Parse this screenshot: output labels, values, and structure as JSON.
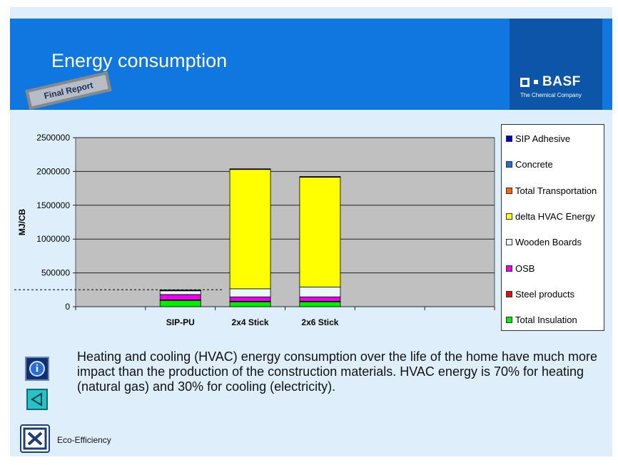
{
  "header": {
    "title": "Energy consumption",
    "stamp": "Final Report",
    "logo_name": "BASF",
    "logo_tagline": "The Chemical Company"
  },
  "chart_data": {
    "type": "bar",
    "stacked": true,
    "title": "",
    "xlabel": "",
    "ylabel": "MJ/CB",
    "ylim": [
      0,
      2500000
    ],
    "yticks": [
      "0",
      "500000",
      "1000000",
      "1500000",
      "2000000",
      "2500000"
    ],
    "categories": [
      "SIP-PU",
      "2x4 Stick",
      "2x6 Stick"
    ],
    "grid": true,
    "reference_line_value": 250000,
    "legend_position": "right",
    "series": [
      {
        "name": "Total Insulation",
        "color": "#00ee00",
        "values": [
          95000,
          75000,
          75000
        ]
      },
      {
        "name": "Steel products",
        "color": "#e01010",
        "values": [
          5000,
          5000,
          5000
        ]
      },
      {
        "name": "OSB",
        "color": "#ee00ee",
        "values": [
          80000,
          65000,
          65000
        ]
      },
      {
        "name": "Wooden Boards",
        "color": "#e6fafa",
        "values": [
          60000,
          120000,
          145000
        ]
      },
      {
        "name": "delta HVAC Energy",
        "color": "#ffff00",
        "values": [
          0,
          1770000,
          1630000
        ]
      },
      {
        "name": "Total Transportation",
        "color": "#ff6600",
        "values": [
          2000,
          2000,
          2000
        ]
      },
      {
        "name": "Concrete",
        "color": "#1f6fd1",
        "values": [
          2000,
          2000,
          2000
        ]
      },
      {
        "name": "SIP Adhesive",
        "color": "#0000cc",
        "values": [
          3000,
          0,
          0
        ]
      }
    ],
    "legend_order": [
      "SIP Adhesive",
      "Concrete",
      "Total Transportation",
      "delta HVAC Energy",
      "Wooden Boards",
      "OSB",
      "Steel products",
      "Total Insulation"
    ]
  },
  "body_text": "Heating and cooling (HVAC) energy consumption over the life of the home have much more impact than the production of the construction materials. HVAC energy is 70% for heating (natural gas) and 30% for cooling (electricity).",
  "footer": {
    "label": "Eco-Efficiency"
  },
  "icons": {
    "info": "info-icon",
    "back": "back-arrow-icon",
    "eco": "eco-efficiency-logo-icon"
  }
}
